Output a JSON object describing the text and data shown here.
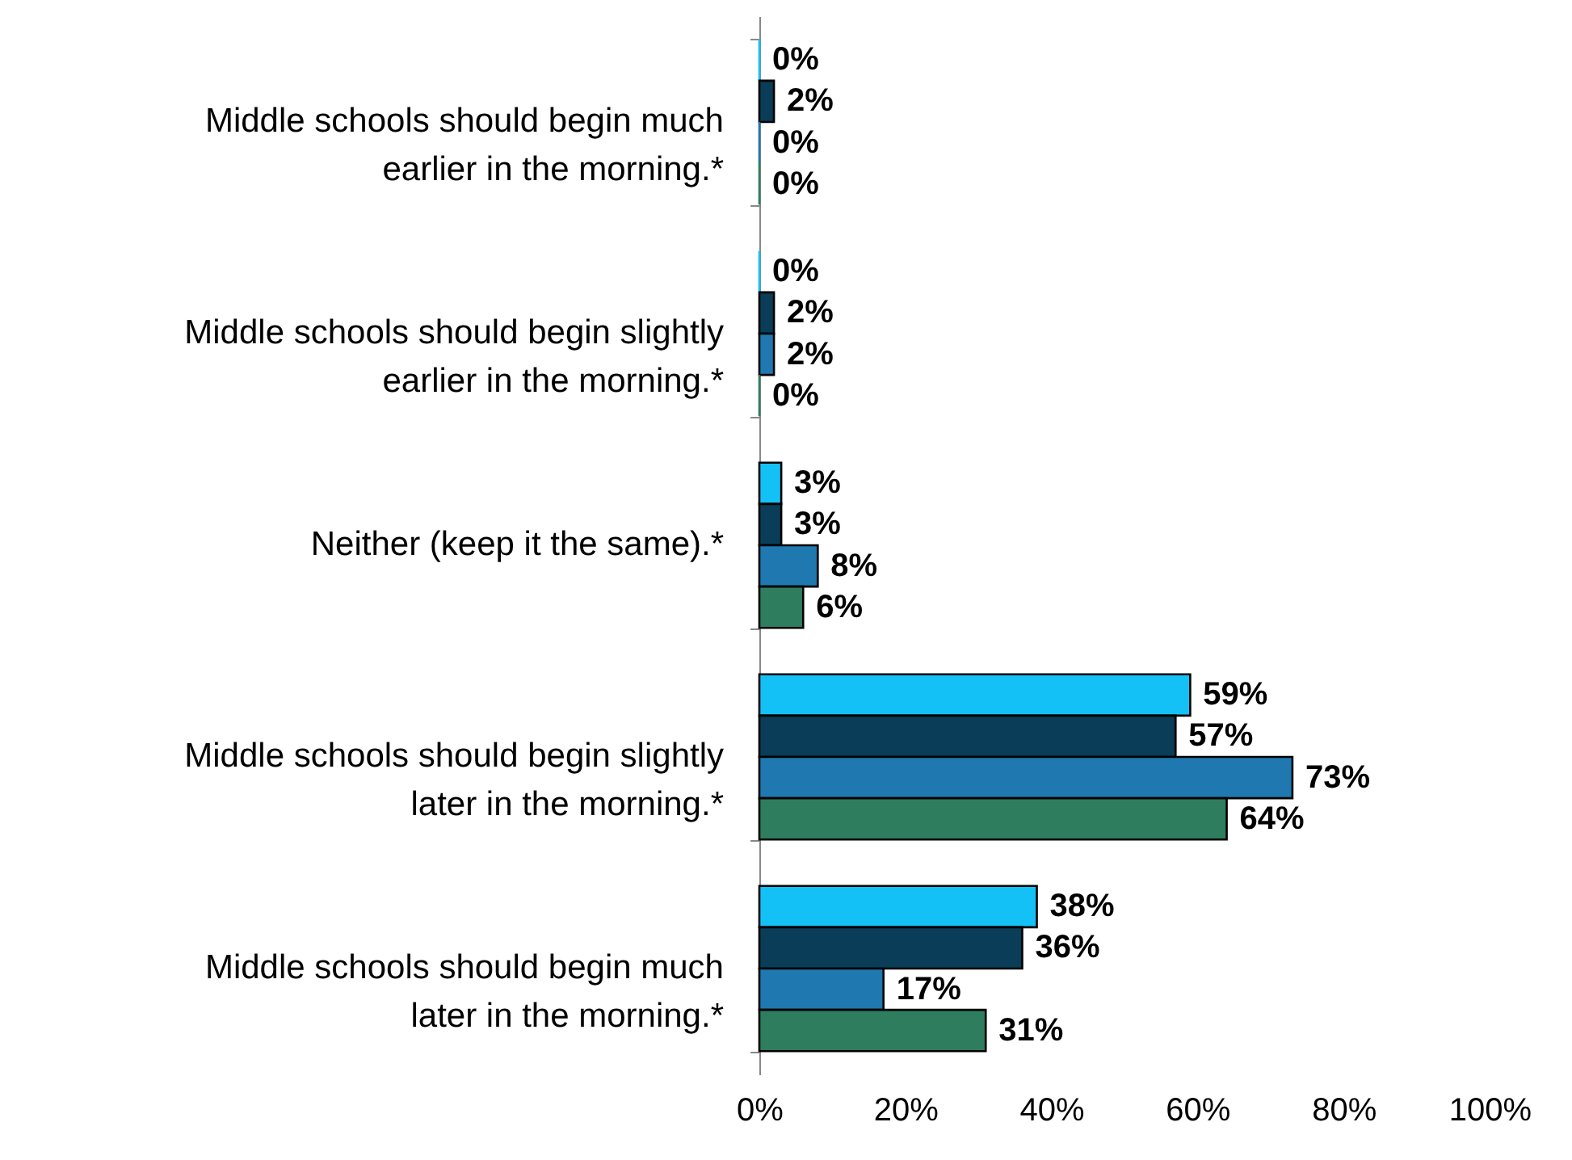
{
  "chart_data": {
    "type": "bar",
    "orientation": "horizontal",
    "categories": [
      "Middle schools should begin much earlier in the morning.*",
      "Middle schools should begin slightly earlier in the morning.*",
      "Neither (keep it the same).*",
      "Middle schools should begin slightly later in the morning.*",
      "Middle schools should begin much later in the morning.*"
    ],
    "series": [
      {
        "color": "#14c1f7",
        "values": [
          0,
          0,
          3,
          59,
          38
        ],
        "value_labels": [
          "0%",
          "0%",
          "3%",
          "59%",
          "38%"
        ]
      },
      {
        "color": "#0a3d57",
        "values": [
          2,
          2,
          3,
          57,
          36
        ],
        "value_labels": [
          "2%",
          "2%",
          "3%",
          "57%",
          "36%"
        ]
      },
      {
        "color": "#1f78b0",
        "values": [
          0,
          2,
          8,
          73,
          17
        ],
        "value_labels": [
          "0%",
          "2%",
          "8%",
          "73%",
          "17%"
        ]
      },
      {
        "color": "#2e7d5f",
        "values": [
          0,
          0,
          6,
          64,
          31
        ],
        "value_labels": [
          "0%",
          "0%",
          "6%",
          "64%",
          "31%"
        ]
      }
    ],
    "xlim": [
      0,
      100
    ],
    "xticks": [
      {
        "value": 0,
        "label": "0%"
      },
      {
        "value": 20,
        "label": "20%"
      },
      {
        "value": 40,
        "label": "40%"
      },
      {
        "value": 60,
        "label": "60%"
      },
      {
        "value": 80,
        "label": "80%"
      },
      {
        "value": 100,
        "label": "100%"
      }
    ]
  }
}
